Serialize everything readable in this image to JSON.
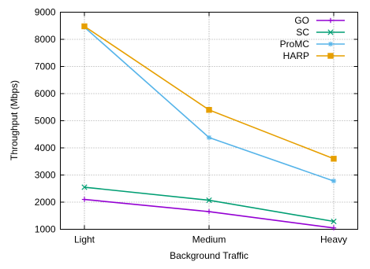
{
  "chart_data": {
    "type": "line",
    "title": "",
    "xlabel": "Background Traffic",
    "ylabel": "Throughput (Mbps)",
    "categories": [
      "Light",
      "Medium",
      "Heavy"
    ],
    "ylim": [
      1000,
      9000
    ],
    "yticks": [
      1000,
      2000,
      3000,
      4000,
      5000,
      6000,
      7000,
      8000,
      9000
    ],
    "grid": true,
    "legend_position": "top-right",
    "series": [
      {
        "name": "GO",
        "color": "#9400d3",
        "marker": "plus",
        "values": [
          2100,
          1650,
          1050
        ]
      },
      {
        "name": "SC",
        "color": "#009e73",
        "marker": "cross",
        "values": [
          2550,
          2070,
          1290
        ]
      },
      {
        "name": "ProMC",
        "color": "#56b4e9",
        "marker": "asterisk",
        "values": [
          8450,
          4380,
          2780
        ]
      },
      {
        "name": "HARP",
        "color": "#e69f00",
        "marker": "square",
        "values": [
          8480,
          5400,
          3600
        ]
      }
    ]
  }
}
